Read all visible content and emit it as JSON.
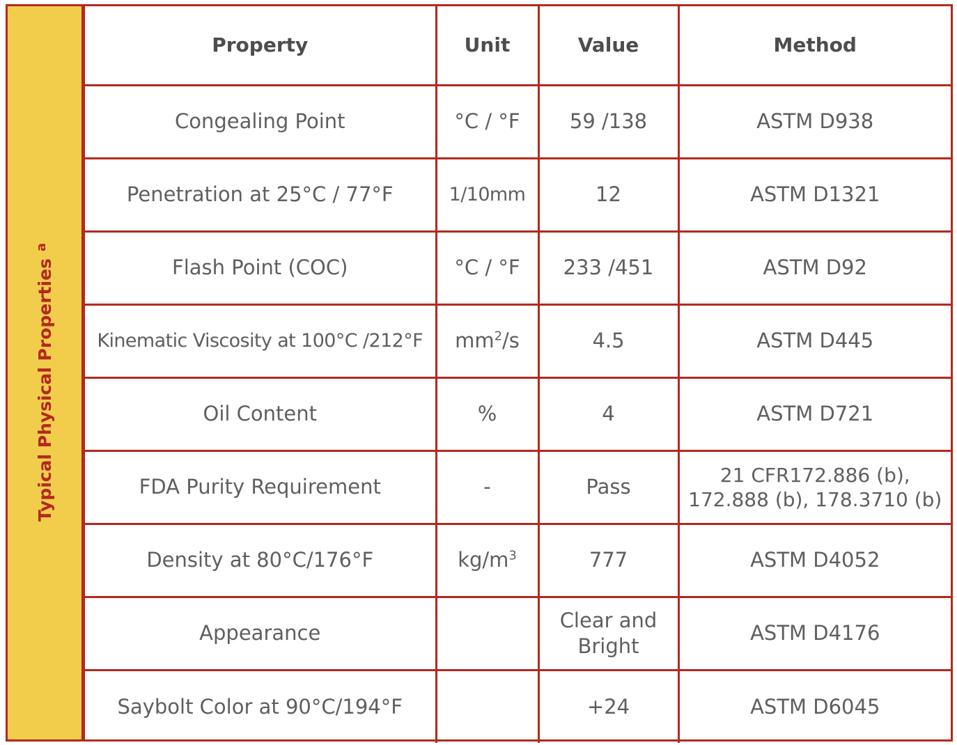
{
  "sidebar": {
    "label": "Typical Physical Properties",
    "superscript": "a"
  },
  "table": {
    "headers": {
      "property": "Property",
      "unit": "Unit",
      "value": "Value",
      "method": "Method"
    },
    "rows": [
      {
        "property": "Congealing Point",
        "unit": "°C / °F",
        "unit_sup": "",
        "unit_after": "",
        "value": "59 /138",
        "method_1": "ASTM D938",
        "method_2": ""
      },
      {
        "property": "Penetration at 25°C / 77°F",
        "unit": "1/10mm",
        "unit_sup": "",
        "unit_after": "",
        "value": "12",
        "method_1": "ASTM D1321",
        "method_2": ""
      },
      {
        "property": "Flash Point (COC)",
        "unit": "°C / °F",
        "unit_sup": "",
        "unit_after": "",
        "value": "233 /451",
        "method_1": "ASTM D92",
        "method_2": ""
      },
      {
        "property": "Kinematic Viscosity at 100°C /212°F",
        "unit": "mm",
        "unit_sup": "2",
        "unit_after": "/s",
        "value": "4.5",
        "method_1": "ASTM D445",
        "method_2": ""
      },
      {
        "property": "Oil Content",
        "unit": "%",
        "unit_sup": "",
        "unit_after": "",
        "value": "4",
        "method_1": "ASTM D721",
        "method_2": ""
      },
      {
        "property": "FDA Purity Requirement",
        "unit": "-",
        "unit_sup": "",
        "unit_after": "",
        "value": "Pass",
        "method_1": "21 CFR172.886 (b),",
        "method_2": "172.888 (b), 178.3710 (b)"
      },
      {
        "property": "Density at 80°C/176°F",
        "unit": "kg/m",
        "unit_sup": "3",
        "unit_after": "",
        "value": "777",
        "method_1": "ASTM D4052",
        "method_2": ""
      },
      {
        "property": "Appearance",
        "unit": "",
        "unit_sup": "",
        "unit_after": "",
        "value": "Clear and Bright",
        "method_1": "ASTM D4176",
        "method_2": ""
      },
      {
        "property": "Saybolt Color at 90°C/194°F",
        "unit": "",
        "unit_sup": "",
        "unit_after": "",
        "value": "+24",
        "method_1": "ASTM D6045",
        "method_2": ""
      }
    ]
  },
  "colors": {
    "border": "#b3291e",
    "sidebar_bg": "#f2cd4c",
    "text": "#5f5f5f"
  }
}
